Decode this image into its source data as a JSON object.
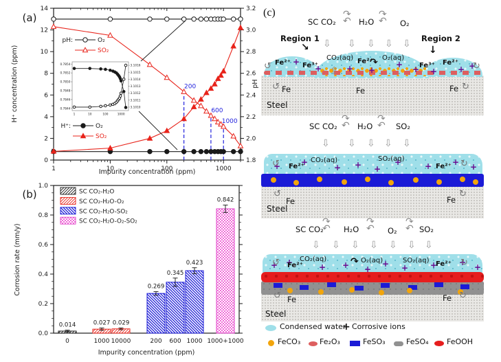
{
  "chart_data": [
    {
      "id": "panel_a",
      "type": "line",
      "panel_label": "(a)",
      "xlabel": "Impurity concentration (ppm)",
      "ylabel_left": "H⁺ concentration (ppm)",
      "ylabel_right": "pH",
      "x_scale": "log",
      "xlim": [
        1,
        2000
      ],
      "x_ticks": [
        "1",
        "10",
        "100",
        "1000"
      ],
      "ylim_left": [
        0,
        14
      ],
      "y_ticks_left": [
        0,
        2,
        4,
        6,
        8,
        10,
        12,
        14
      ],
      "ylim_right": [
        1.8,
        3.2
      ],
      "y_ticks_right": [
        "1.8",
        "2.0",
        "2.2",
        "2.4",
        "2.6",
        "2.8",
        "3.0",
        "3.2"
      ],
      "colors": {
        "black": "#1a1a1a",
        "red": "#e8231a",
        "annotation": "#2222dd"
      },
      "legend_ph": {
        "prefix": "pH:",
        "items": [
          {
            "label": "O₂",
            "marker": "open-circle",
            "color": "#1a1a1a"
          },
          {
            "label": "SO₂",
            "marker": "open-triangle",
            "color": "#e8231a"
          }
        ]
      },
      "legend_h": {
        "prefix": "H⁺:",
        "items": [
          {
            "label": "O₂",
            "marker": "filled-circle",
            "color": "#1a1a1a"
          },
          {
            "label": "SO₂",
            "marker": "filled-triangle",
            "color": "#e8231a"
          }
        ]
      },
      "annotations": [
        {
          "text": "200",
          "x": 200,
          "ph": 2.43
        },
        {
          "text": "600",
          "x": 600,
          "ph": 2.21
        },
        {
          "text": "1000",
          "x": 1000,
          "ph": 2.11
        }
      ],
      "series": [
        {
          "name": "pH: O₂",
          "axis": "right",
          "marker": "open-circle",
          "color": "#1a1a1a",
          "x": [
            1,
            10,
            50,
            100,
            200,
            300,
            400,
            500,
            600,
            700,
            800,
            900,
            1000,
            1500,
            2000
          ],
          "y": [
            3.1,
            3.1,
            3.1,
            3.1,
            3.1,
            3.1,
            3.1,
            3.1,
            3.1,
            3.1,
            3.1,
            3.1,
            3.1,
            3.1,
            3.1
          ]
        },
        {
          "name": "pH: SO₂",
          "axis": "right",
          "marker": "open-triangle",
          "color": "#e8231a",
          "x": [
            1,
            10,
            50,
            100,
            200,
            300,
            400,
            500,
            600,
            700,
            800,
            900,
            1000,
            1500,
            2000
          ],
          "y": [
            3.03,
            2.95,
            2.68,
            2.56,
            2.43,
            2.35,
            2.3,
            2.25,
            2.21,
            2.18,
            2.15,
            2.13,
            2.11,
            2.02,
            1.93
          ]
        },
        {
          "name": "H⁺: O₂",
          "axis": "left",
          "marker": "filled-circle",
          "color": "#1a1a1a",
          "x": [
            1,
            10,
            50,
            100,
            200,
            300,
            400,
            500,
            600,
            700,
            800,
            900,
            1000,
            1500,
            2000
          ],
          "y": [
            0.78,
            0.78,
            0.78,
            0.78,
            0.78,
            0.78,
            0.78,
            0.78,
            0.78,
            0.78,
            0.78,
            0.78,
            0.78,
            0.78,
            0.78
          ]
        },
        {
          "name": "H⁺: SO₂",
          "axis": "left",
          "marker": "filled-triangle",
          "color": "#e8231a",
          "x": [
            1,
            10,
            50,
            100,
            200,
            300,
            400,
            500,
            600,
            700,
            800,
            900,
            1000,
            1500,
            2000
          ],
          "y": [
            0.8,
            1.1,
            2.0,
            2.7,
            3.8,
            4.9,
            5.6,
            6.2,
            6.6,
            7.0,
            7.5,
            7.8,
            8.2,
            10.5,
            12.2
          ]
        }
      ],
      "inset": {
        "x_ticks": [
          "1",
          "10",
          "100",
          "1000"
        ],
        "y_ticks_left": [
          "0.7844",
          "0.7846",
          "0.7848",
          "0.7850",
          "0.7852",
          "0.7854"
        ],
        "y_ticks_right": [
          "3.1010",
          "3.1011",
          "3.1012",
          "3.1013",
          "3.1014",
          "3.1015",
          "3.1016"
        ],
        "series": [
          {
            "name": "H⁺: O₂ (inset)",
            "axis": "left",
            "marker": "filled-circle",
            "color": "#1a1a1a",
            "x": [
              1,
              10,
              50,
              100,
              200,
              300,
              400,
              500,
              600,
              700,
              800,
              900,
              1000,
              1500,
              2000
            ],
            "y": [
              0.7853,
              0.7853,
              0.78529,
              0.78528,
              0.78526,
              0.78524,
              0.78522,
              0.7852,
              0.78517,
              0.78514,
              0.78511,
              0.78507,
              0.78502,
              0.78478,
              0.78442
            ]
          },
          {
            "name": "pH: O₂ (inset)",
            "axis": "right",
            "marker": "open-circle",
            "color": "#1a1a1a",
            "x": [
              1,
              10,
              50,
              100,
              200,
              300,
              400,
              500,
              600,
              700,
              800,
              900,
              1000,
              1500,
              2000
            ],
            "y": [
              3.101,
              3.101,
              3.10101,
              3.10102,
              3.10103,
              3.10104,
              3.10105,
              3.10107,
              3.10109,
              3.10111,
              3.10113,
              3.10116,
              3.1012,
              3.1014,
              3.1016
            ]
          }
        ]
      }
    },
    {
      "id": "panel_b",
      "type": "bar",
      "panel_label": "(b)",
      "xlabel": "Impurity concentration (ppm)",
      "ylabel": "Corrosion rate (mm/y)",
      "ylim": [
        0,
        1.0
      ],
      "y_ticks": [
        "0.0",
        "0.2",
        "0.4",
        "0.6",
        "0.8",
        "1.0"
      ],
      "categories": [
        "0",
        "1000",
        "10000",
        "200",
        "600",
        "1000",
        "1000+1000"
      ],
      "values": [
        0.014,
        0.027,
        0.029,
        0.269,
        0.345,
        0.423,
        0.842
      ],
      "errors": [
        0.006,
        0.008,
        0.006,
        0.012,
        0.028,
        0.02,
        0.025
      ],
      "value_labels": [
        "0.014",
        "0.027",
        "0.029",
        "0.269",
        "0.345",
        "0.423",
        "0.842"
      ],
      "bar_groups": [
        0,
        1,
        1,
        2,
        2,
        2,
        3
      ],
      "group_colors": [
        "#1a1a1a",
        "#e8231a",
        "#1b1bd6",
        "#e041c8"
      ],
      "legend": [
        {
          "label": "SC CO₂-H₂O",
          "pattern": "diagonal",
          "color": "#1a1a1a"
        },
        {
          "label": "SC CO₂-H₂O-O₂",
          "pattern": "diagonal",
          "color": "#e8231a"
        },
        {
          "label": "SC CO₂-H₂O-SO₂",
          "pattern": "diagonal-back",
          "color": "#1b1bd6"
        },
        {
          "label": "SC CO₂-H₂O-O₂-SO₂",
          "pattern": "checker",
          "color": "#e041c8"
        }
      ]
    }
  ],
  "panel_c": {
    "label": "(c)",
    "icons": {
      "ion": "+",
      "dissolve": "⇩",
      "cycle_cw": "↷",
      "cycle_ccw": "↶",
      "rotate_l": "↺",
      "rotate_r": "↻",
      "region_arrow_1": "↘",
      "region_arrow_2": "↓",
      "up": "⇧",
      "transform": "↷"
    },
    "d1": {
      "gas1": "SC CO₂",
      "gas2": "H₂O",
      "gas3": "O₂",
      "region1": "Region 1",
      "region2": "Region 2",
      "ion_a": "Fe²⁺",
      "ion_b": "Fe³⁺",
      "aq1": "CO₂(aq)",
      "ion_c": "Fe²⁺",
      "aq2": "O₂(aq)",
      "ion_d": "Fe³⁺",
      "ion_e": "Fe²⁺",
      "fe1": "Fe",
      "fe2": "Fe",
      "fe3": "Fe",
      "steel": "Steel"
    },
    "d2": {
      "gas1": "SC CO₂",
      "gas2": "H₂O",
      "gas3": "SO₂",
      "aq1": "CO₂(aq)",
      "aq2": "SO₂(aq)",
      "ion_a": "Fe²⁺",
      "ion_b": "Fe²⁺",
      "fe1": "Fe",
      "fe2": "Fe",
      "steel": "Steel"
    },
    "d3": {
      "gas1": "SC CO₂",
      "gas2": "H₂O",
      "gas3": "O₂",
      "gas4": "SO₂",
      "aq1": "CO₂(aq)",
      "aq2": "O₂(aq)",
      "aq3": "SO₂(aq)",
      "ion_a": "Fe²⁺",
      "ion_b": "Fe²⁺",
      "fe1": "Fe",
      "fe2": "Fe",
      "steel": "Steel"
    },
    "legend": {
      "condensed_water": "Condensed water",
      "corrosive_ions": "Corrosive ions",
      "feco3": "FeCO₃",
      "fe2o3": "Fe₂O₃",
      "feso3": "FeSO₃",
      "feso4": "FeSO₄",
      "feooh": "FeOOH"
    },
    "colors": {
      "water": "#9fdfe9",
      "ion": "#6a0d91",
      "feco3": "#f2a50c",
      "fe2o3": "#dd5f5f",
      "feso3": "#1b1bd6",
      "feso4": "#919191",
      "feooh": "#e61e1e",
      "steel": "#e9e8e5"
    }
  }
}
